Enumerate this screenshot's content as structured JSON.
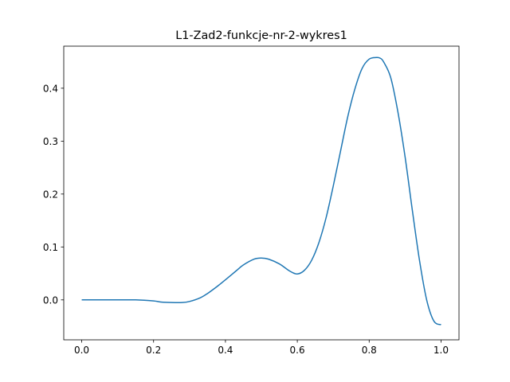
{
  "chart_data": {
    "type": "line",
    "title": "L1-Zad2-funkcje-nr-2-wykres1",
    "xlabel": "",
    "ylabel": "",
    "xlim": [
      -0.05,
      1.05
    ],
    "ylim": [
      -0.0755,
      0.4795
    ],
    "xticks": [
      0.0,
      0.2,
      0.4,
      0.6,
      0.8,
      1.0
    ],
    "xtick_labels": [
      "0.0",
      "0.2",
      "0.4",
      "0.6",
      "0.8",
      "1.0"
    ],
    "yticks": [
      0.0,
      0.1,
      0.2,
      0.3,
      0.4
    ],
    "ytick_labels": [
      "0.0",
      "0.1",
      "0.2",
      "0.3",
      "0.4"
    ],
    "grid": false,
    "series": [
      {
        "color": "#1f77b4",
        "x": [
          0.0,
          0.05,
          0.1,
          0.15,
          0.2,
          0.22,
          0.25,
          0.28,
          0.3,
          0.33,
          0.35,
          0.38,
          0.4,
          0.43,
          0.45,
          0.48,
          0.5,
          0.52,
          0.55,
          0.58,
          0.6,
          0.62,
          0.64,
          0.66,
          0.68,
          0.7,
          0.72,
          0.74,
          0.76,
          0.78,
          0.8,
          0.82,
          0.83,
          0.84,
          0.86,
          0.88,
          0.9,
          0.92,
          0.94,
          0.96,
          0.98,
          1.0
        ],
        "y": [
          0.0,
          0.0,
          0.0,
          0.0,
          -0.002,
          -0.004,
          -0.005,
          -0.005,
          -0.003,
          0.004,
          0.012,
          0.027,
          0.038,
          0.055,
          0.066,
          0.077,
          0.079,
          0.077,
          0.068,
          0.054,
          0.049,
          0.056,
          0.075,
          0.108,
          0.155,
          0.215,
          0.28,
          0.345,
          0.398,
          0.437,
          0.455,
          0.458,
          0.457,
          0.45,
          0.42,
          0.355,
          0.27,
          0.17,
          0.075,
          0.0,
          -0.04,
          -0.047
        ]
      }
    ]
  }
}
